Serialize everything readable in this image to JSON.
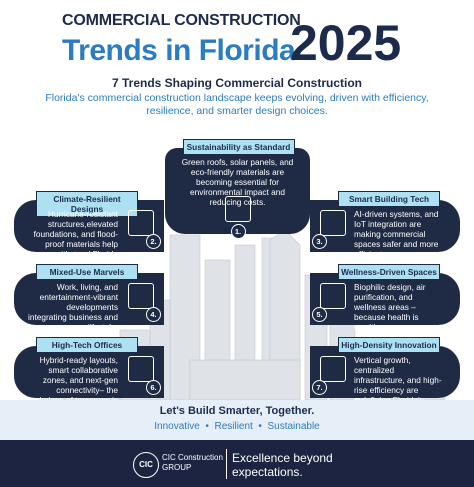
{
  "header": {
    "kicker": "COMMERCIAL CONSTRUCTION",
    "title": "Trends in Florida",
    "year": "2025"
  },
  "subtitle": "7 Trends Shaping Commercial Construction",
  "intro": "Florida's commercial construction landscape keeps evolving, driven with efficiency, resilience, and smarter design choices.",
  "trends": [
    {
      "number": "1.",
      "title": "Sustainability as Standard",
      "text": "Green roofs, solar panels, and eco-friendly materials are becoming essential for environmental impact and reducing costs."
    },
    {
      "number": "2.",
      "title": "Climate-Resilient Designs",
      "text": "Hurricane-resistant structures,elevated foundations, and flood-proof materials help withstand Florida weather."
    },
    {
      "number": "3.",
      "title": "Smart Building Tech",
      "text": "AI-driven systems, and IoT integration are making commercial spaces safer and more efficient."
    },
    {
      "number": "4.",
      "title": "Mixed-Use Marvels",
      "text": "Work, living, and entertainment-vibrant developments integrating business and lifestyle."
    },
    {
      "number": "5.",
      "title": "Wellness-Driven Spaces",
      "text": "Biophilic design, air purification, and wellness areas – because health is wealth."
    },
    {
      "number": "6.",
      "title": "High-Tech Offices",
      "text": "Hybrid-ready layouts, smart collaborative zones, and next-gen connectivity– the workplace of tomorrow is here."
    },
    {
      "number": "7.",
      "title": "High-Density Innovation",
      "text": "Vertical growth, centralized infrastructure, and high-rise efficiency are redefining Florida's skylines."
    }
  ],
  "footer": {
    "heading": "Let's Build Smarter, Together.",
    "tags": [
      "Innovative",
      "Resilient",
      "Sustainable"
    ]
  },
  "brand": {
    "logo": "CIC",
    "name": "CIC Construction",
    "group": "GROUP",
    "tagline": "Excellence beyond expectations."
  }
}
